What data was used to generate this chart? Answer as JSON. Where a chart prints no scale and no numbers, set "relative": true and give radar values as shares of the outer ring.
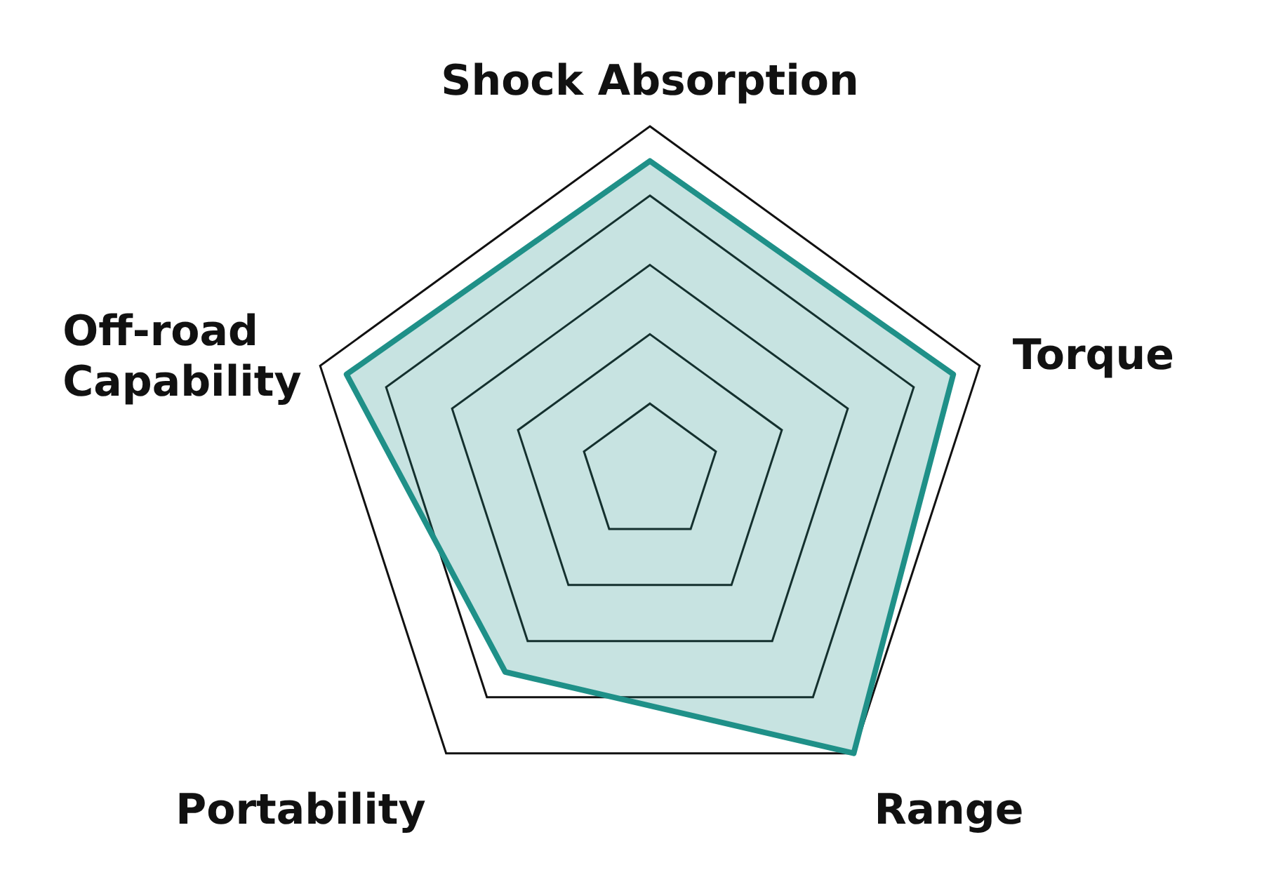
{
  "chart_data": {
    "type": "radar",
    "relative": true,
    "grid": true,
    "categories": [
      "Shock Absorption",
      "Torque",
      "Range",
      "Portability",
      "Off-road Capability"
    ],
    "series": [
      {
        "color": "#1f9088",
        "values": [
          0.9,
          0.92,
          1.0,
          0.71,
          0.92
        ]
      }
    ]
  }
}
